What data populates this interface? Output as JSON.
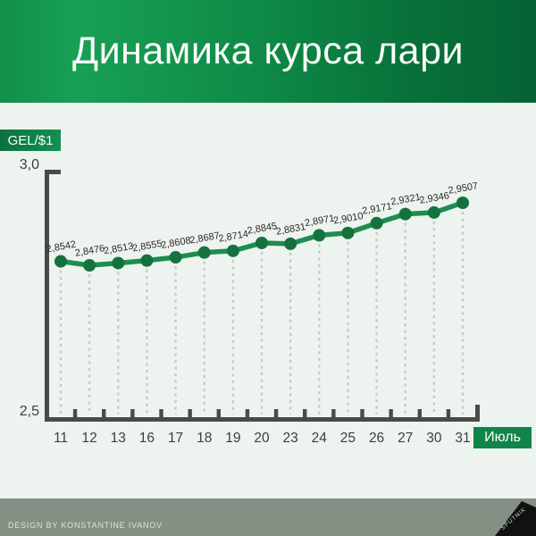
{
  "header": {
    "title": "Динамика курса лари"
  },
  "axis_unit_label": "GEL/$1",
  "y_axis": {
    "top_label": "3,0",
    "bottom_label": "2,5"
  },
  "month_label": "Июль",
  "footer": {
    "credit": "DESIGN BY KONSTANTINE IVANOV",
    "logo": "SPUTNIK"
  },
  "chart_data": {
    "type": "line",
    "title": "Динамика курса лари",
    "unit": "GEL/$1",
    "categories": [
      "11",
      "12",
      "13",
      "16",
      "17",
      "18",
      "19",
      "20",
      "23",
      "24",
      "25",
      "26",
      "27",
      "30",
      "31"
    ],
    "month": "Июль",
    "values": [
      2.8542,
      2.8476,
      2.8513,
      2.8555,
      2.8608,
      2.8687,
      2.8714,
      2.8845,
      2.8831,
      2.8971,
      2.901,
      2.9171,
      2.9321,
      2.9346,
      2.9507
    ],
    "point_labels": [
      "2,8542",
      "2,8476",
      "2,8513",
      "2,8555",
      "2,8608",
      "2,8687",
      "2,8714",
      "2,8845",
      "2,8831",
      "2,8971",
      "2,9010",
      "2,9171",
      "2,9321",
      "2,9346",
      "2,9507"
    ],
    "ylim": [
      2.5,
      3.0
    ],
    "y_tick_labels": [
      "2,5",
      "3,0"
    ],
    "grid": "dashed-vertical-per-point",
    "legend": "none"
  },
  "colors": {
    "header_green_light": "#18a055",
    "header_green_dark": "#066334",
    "line": "#1e8d4f",
    "dot": "#15723e",
    "axis": "#4a4a48",
    "dashed_grid": "#c6cac6",
    "value_label": "#2d2d2d",
    "day_label": "#3e3e3e",
    "background": "#edf3ee",
    "footer_bar": "#859084",
    "label_box_green": "#108449"
  }
}
